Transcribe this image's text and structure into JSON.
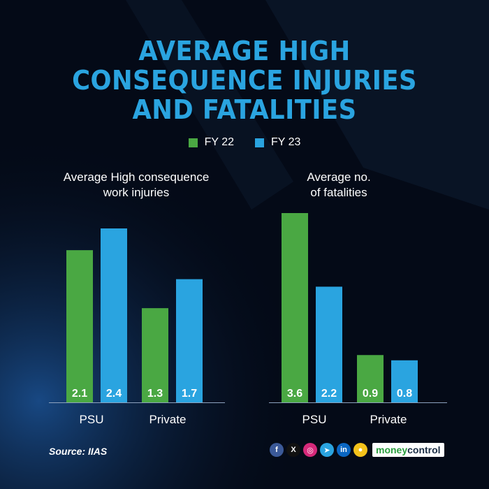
{
  "title_lines": [
    "AVERAGE HIGH",
    "CONSEQUENCE INJURIES",
    "AND FATALITIES"
  ],
  "colors": {
    "fy22": "#4aa843",
    "fy23": "#2aa4e0",
    "title": "#2aa4e0",
    "background": "#040a17"
  },
  "legend": [
    {
      "label": "FY 22",
      "color": "#4aa843"
    },
    {
      "label": "FY 23",
      "color": "#2aa4e0"
    }
  ],
  "chart_data": [
    {
      "type": "bar",
      "title": "Average High consequence work injuries",
      "categories": [
        "PSU",
        "Private"
      ],
      "series": [
        {
          "name": "FY 22",
          "values": [
            2.1,
            1.3
          ]
        },
        {
          "name": "FY 23",
          "values": [
            2.4,
            1.7
          ]
        }
      ],
      "ylim": [
        0,
        2.4
      ],
      "data_labels": true,
      "grid": false
    },
    {
      "type": "bar",
      "title": "Average no. of fatalities",
      "categories": [
        "PSU",
        "Private"
      ],
      "series": [
        {
          "name": "FY 22",
          "values": [
            3.6,
            0.9
          ]
        },
        {
          "name": "FY 23",
          "values": [
            2.2,
            0.8
          ]
        }
      ],
      "ylim": [
        0,
        3.6
      ],
      "data_labels": true,
      "grid": false
    }
  ],
  "chart_titles": {
    "left_lines": [
      "Average High consequence",
      "work injuries"
    ],
    "right_lines": [
      "Average no.",
      "of fatalities"
    ]
  },
  "footer": {
    "source": "Source: IIAS",
    "social_icons": [
      {
        "name": "facebook-icon",
        "glyph": "f",
        "color": "#3b5998"
      },
      {
        "name": "x-icon",
        "glyph": "X",
        "color": "#111111"
      },
      {
        "name": "instagram-icon",
        "glyph": "◎",
        "color": "#d6297a"
      },
      {
        "name": "telegram-icon",
        "glyph": "➤",
        "color": "#2aa3df"
      },
      {
        "name": "linkedin-icon",
        "glyph": "in",
        "color": "#0a66c2"
      },
      {
        "name": "koo-icon",
        "glyph": "●",
        "color": "#f4c21b"
      }
    ],
    "brand_part1": "money",
    "brand_part2": "control"
  }
}
